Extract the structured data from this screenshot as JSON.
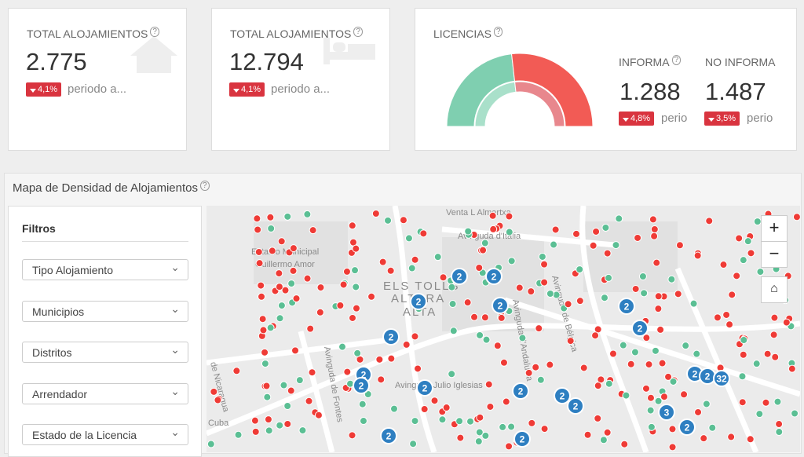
{
  "cards": [
    {
      "title": "TOTAL ALOJAMIENTOS",
      "value": "2.775",
      "change": "4,1%",
      "caption": "periodo a..."
    },
    {
      "title": "TOTAL ALOJAMIENTOS",
      "value": "12.794",
      "change": "4,1%",
      "caption": "periodo a..."
    }
  ],
  "chart_data": {
    "type": "pie",
    "title": "LICENCIAS",
    "categories": [
      "INFORMA",
      "NO INFORMA"
    ],
    "values": [
      1288,
      1487
    ],
    "value_labels": [
      "1.288",
      "1.487"
    ],
    "colors": [
      "#7fcfb0",
      "#f25b55"
    ],
    "inner_colors": [
      "#a9e0ca",
      "#e8878d"
    ],
    "changes": [
      "4,8%",
      "3,5%"
    ],
    "captions": [
      "perio",
      "perio"
    ]
  },
  "map": {
    "title": "Mapa de Densidad de Alojamientos",
    "filters_title": "Filtros",
    "filters": [
      "Tipo Alojamiento",
      "Municipios",
      "Distritos",
      "Arrendador",
      "Estado de la Licencia"
    ],
    "labels": [
      "Venta L Almartxa",
      "Avinguda d'Itàlia",
      "Estadio Municipal",
      "Guillermo Amor",
      "ELS TOLLS",
      "ALTERA",
      "ALTA",
      "Avinguda de Fontes",
      "Avinguda Julio Iglesias",
      "Avinguda de Bélgica",
      "Avinguda d'Andalusia",
      "Cuba",
      "de Nicaragua"
    ],
    "clusters": [
      "2",
      "2",
      "2",
      "2",
      "2",
      "2",
      "2",
      "2",
      "2",
      "2",
      "2",
      "2",
      "2",
      "32",
      "2",
      "2",
      "3",
      "2",
      "2",
      "2"
    ],
    "zoom_in": "+",
    "zoom_out": "−"
  }
}
